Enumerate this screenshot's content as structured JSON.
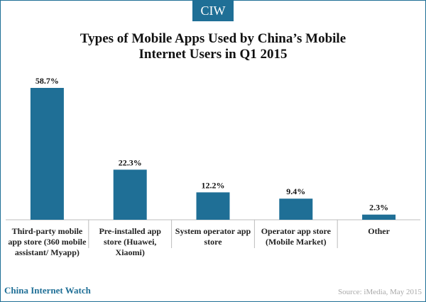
{
  "badge": "CIW",
  "chart_data": {
    "type": "bar",
    "title": "Types of Mobile Apps Used by China’s Mobile Internet Users in Q1 2015",
    "title_lines": [
      "Types of Mobile Apps Used by China’s Mobile",
      "Internet Users in Q1 2015"
    ],
    "categories": [
      "Third-party mobile app store (360 mobile assistant/ Myapp)",
      "Pre-installed app store (Huawei, Xiaomi)",
      "System operator app store",
      "Operator app store (Mobile Market)",
      "Other"
    ],
    "category_lines": [
      [
        "Third-party mobile",
        "app store (360 mobile",
        "assistant/ Myapp)"
      ],
      [
        "Pre-installed app",
        "store (Huawei,",
        "Xiaomi)"
      ],
      [
        "System operator app",
        "store"
      ],
      [
        "Operator app store",
        "(Mobile Market)"
      ],
      [
        "Other"
      ]
    ],
    "values": [
      58.7,
      22.3,
      12.2,
      9.4,
      2.3
    ],
    "value_labels": [
      "58.7%",
      "22.3%",
      "12.2%",
      "9.4%",
      "2.3%"
    ],
    "ylim": [
      0,
      60
    ],
    "grid": false,
    "bar_color": "#1f6f96"
  },
  "footer": {
    "brand": "China Internet Watch",
    "source": "Source: iMedia,  May 2015"
  },
  "colors": {
    "accent": "#1f6f96"
  }
}
